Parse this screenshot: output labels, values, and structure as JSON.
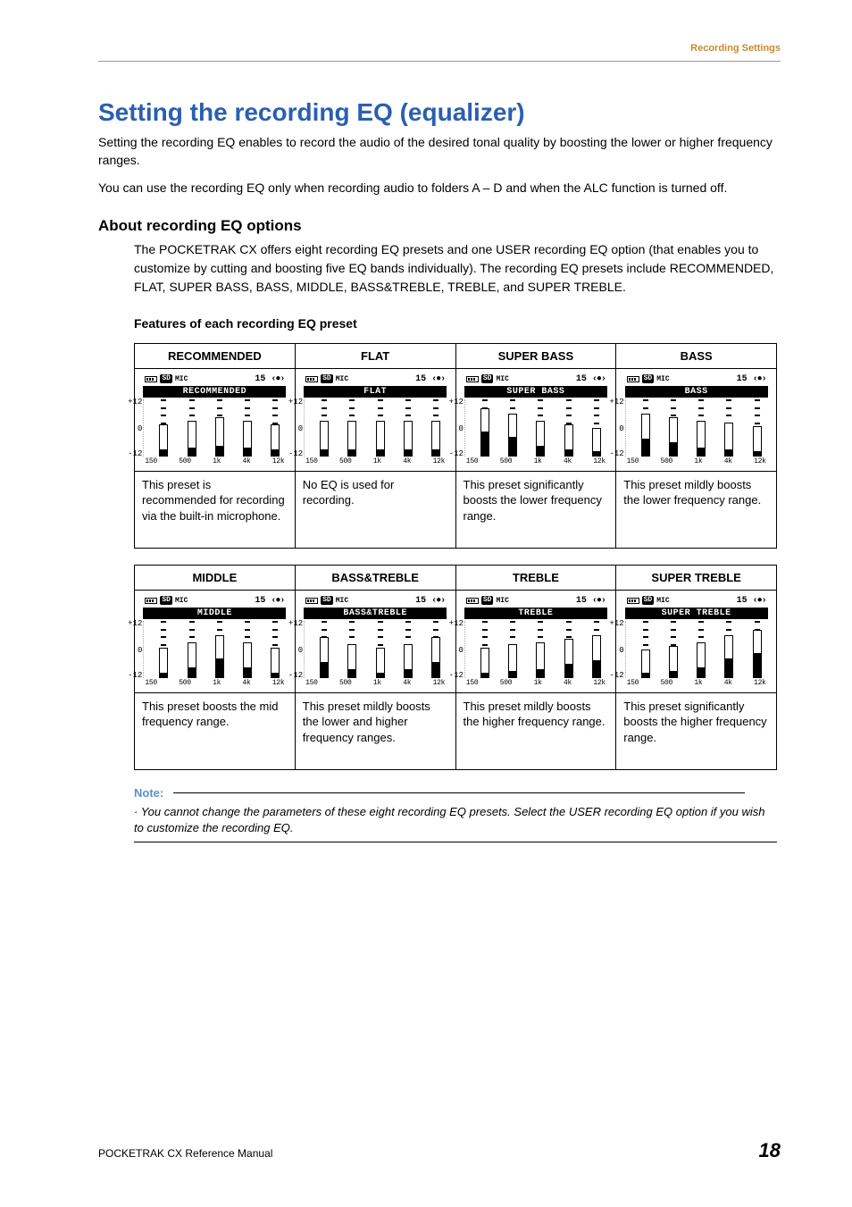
{
  "header": {
    "section": "Recording Settings"
  },
  "title": "Setting the recording EQ (equalizer)",
  "intro1": "Setting the recording EQ enables to record the audio of the desired tonal quality by boosting the lower or higher frequency ranges.",
  "intro2": "You can use the recording EQ only when recording audio to folders A – D and when the ALC function is turned off.",
  "sub_heading": "About recording EQ options",
  "sub_desc": "The POCKETRAK CX offers eight recording EQ presets and one USER recording EQ option (that enables you to customize by cutting and boosting five EQ bands individually). The recording EQ presets include RECOMMENDED, FLAT, SUPER BASS, BASS, MIDDLE, BASS&TREBLE, TREBLE, and SUPER TREBLE.",
  "features_label": "Features of each recording EQ preset",
  "eq_common": {
    "rec_num": "15",
    "ylabels": [
      "+12",
      "0",
      "-12"
    ],
    "xlabels": [
      "150",
      "500",
      "1k",
      "4k",
      "12k"
    ],
    "sd_label": "SD",
    "mic_label": "MIC"
  },
  "presets_row1": [
    {
      "header": "RECOMMENDED",
      "name": "RECOMMENDED",
      "bars": [
        36,
        40,
        44,
        40,
        36
      ],
      "fill": [
        8,
        10,
        12,
        10,
        8
      ],
      "desc": "This preset is recommended for recording via the built-in microphone."
    },
    {
      "header": "FLAT",
      "name": "FLAT",
      "bars": [
        40,
        40,
        40,
        40,
        40
      ],
      "fill": [
        8,
        8,
        8,
        8,
        8
      ],
      "desc": "No EQ is used for recording."
    },
    {
      "header": "SUPER BASS",
      "name": "SUPER BASS",
      "bars": [
        54,
        48,
        40,
        36,
        32
      ],
      "fill": [
        28,
        22,
        12,
        8,
        6
      ],
      "desc": "This preset significantly boosts the lower frequency range."
    },
    {
      "header": "BASS",
      "name": "BASS",
      "bars": [
        48,
        44,
        40,
        38,
        34
      ],
      "fill": [
        20,
        16,
        10,
        8,
        6
      ],
      "desc": "This preset mildly boosts the lower frequency range."
    }
  ],
  "presets_row2": [
    {
      "header": "MIDDLE",
      "name": "MIDDLE",
      "bars": [
        34,
        40,
        48,
        40,
        34
      ],
      "fill": [
        6,
        12,
        22,
        12,
        6
      ],
      "desc": "This preset boosts the mid frequency range."
    },
    {
      "header": "BASS&TREBLE",
      "name": "BASS&TREBLE",
      "bars": [
        46,
        38,
        34,
        38,
        46
      ],
      "fill": [
        18,
        10,
        6,
        10,
        18
      ],
      "desc": "This preset mildly boosts the lower and higher frequency ranges."
    },
    {
      "header": "TREBLE",
      "name": "TREBLE",
      "bars": [
        34,
        38,
        40,
        44,
        48
      ],
      "fill": [
        6,
        8,
        10,
        16,
        20
      ],
      "desc": "This preset mildly boosts the higher frequency range."
    },
    {
      "header": "SUPER TREBLE",
      "name": "SUPER TREBLE",
      "bars": [
        32,
        36,
        40,
        48,
        54
      ],
      "fill": [
        6,
        8,
        12,
        22,
        28
      ],
      "desc": "This preset significantly boosts the higher frequency range."
    }
  ],
  "note_label": "Note:",
  "note_text": "· You cannot change the parameters of these eight recording EQ presets. Select the USER recording EQ option if you wish to customize the recording EQ.",
  "footer": {
    "left": "POCKETRAK CX   Reference Manual",
    "page": "18"
  }
}
